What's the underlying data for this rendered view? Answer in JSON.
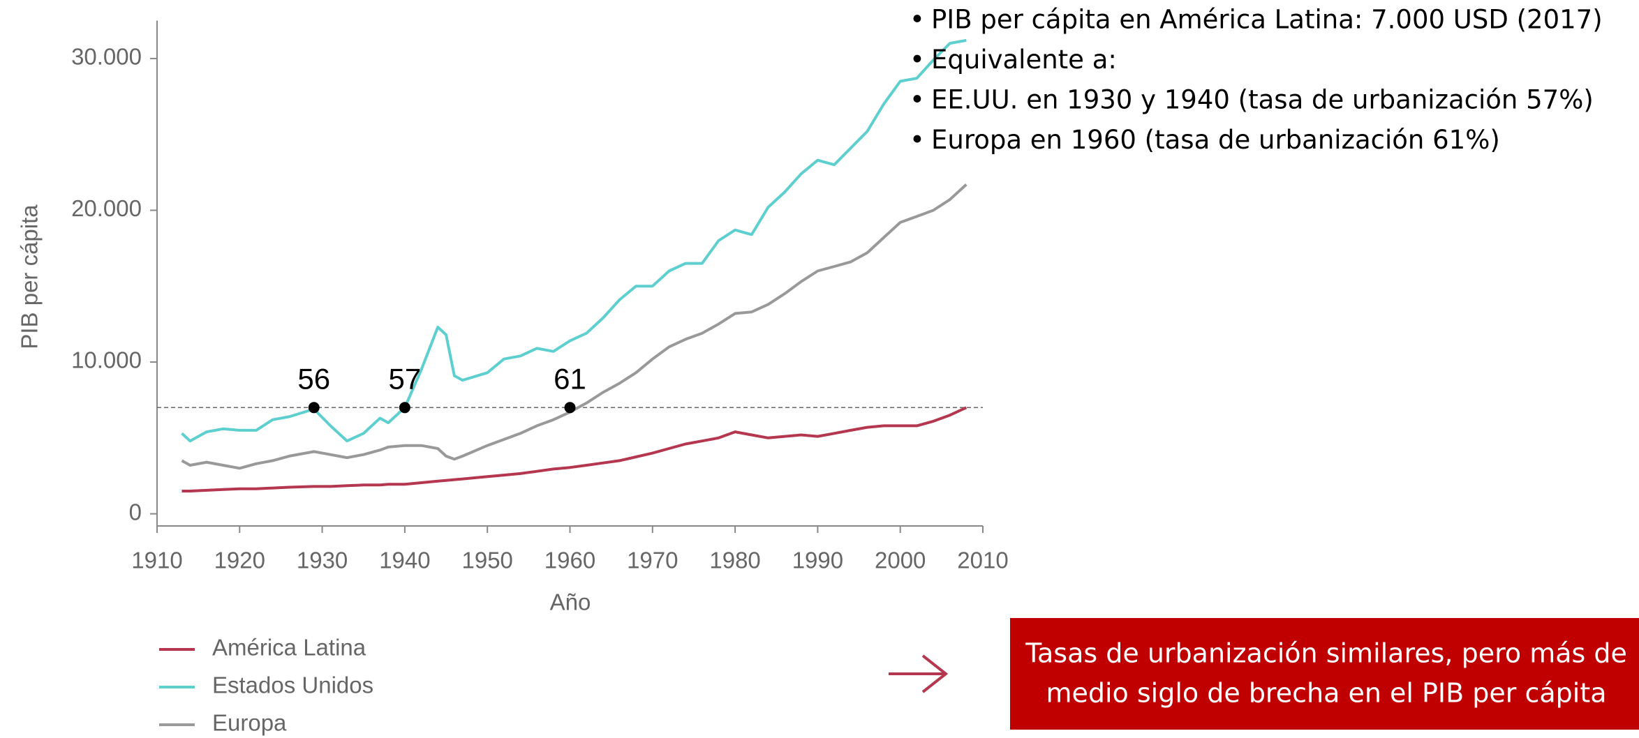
{
  "chart_data": {
    "type": "line",
    "y_label": "PIB per cápita",
    "x_label": "Año",
    "x": [
      1913,
      1914,
      1916,
      1918,
      1920,
      1922,
      1924,
      1926,
      1929,
      1931,
      1933,
      1935,
      1937,
      1938,
      1940,
      1942,
      1944,
      1945,
      1946,
      1947,
      1950,
      1952,
      1954,
      1956,
      1958,
      1960,
      1962,
      1964,
      1966,
      1968,
      1970,
      1972,
      1974,
      1976,
      1978,
      1980,
      1982,
      1984,
      1986,
      1988,
      1990,
      1992,
      1994,
      1996,
      1998,
      2000,
      2002,
      2004,
      2006,
      2008
    ],
    "series": [
      {
        "name": "América Latina",
        "color": "#b5364f",
        "values": [
          1500,
          1500,
          1550,
          1600,
          1650,
          1650,
          1700,
          1750,
          1800,
          1800,
          1850,
          1900,
          1900,
          1950,
          1950,
          2050,
          2150,
          2200,
          2250,
          2300,
          2450,
          2550,
          2650,
          2800,
          2950,
          3050,
          3200,
          3350,
          3500,
          3750,
          4000,
          4300,
          4600,
          4800,
          5000,
          5400,
          5200,
          5000,
          5100,
          5200,
          5100,
          5300,
          5500,
          5700,
          5800,
          5800,
          5800,
          6100,
          6500,
          7000
        ]
      },
      {
        "name": "Estados Unidos",
        "color": "#5ecfcf",
        "values": [
          5300,
          4800,
          5400,
          5600,
          5500,
          5500,
          6200,
          6400,
          6900,
          5800,
          4800,
          5300,
          6300,
          6000,
          7000,
          9500,
          12300,
          11800,
          9100,
          8800,
          9300,
          10200,
          10400,
          10900,
          10700,
          11400,
          11900,
          12900,
          14100,
          15000,
          15000,
          16000,
          16500,
          16500,
          18000,
          18700,
          18400,
          20200,
          21200,
          22400,
          23300,
          23000,
          24100,
          25200,
          27000,
          28500,
          28700,
          29900,
          31000,
          31200
        ]
      },
      {
        "name": "Europa",
        "color": "#999999",
        "values": [
          3500,
          3200,
          3400,
          3200,
          3000,
          3300,
          3500,
          3800,
          4100,
          3900,
          3700,
          3900,
          4200,
          4400,
          4500,
          4500,
          4300,
          3800,
          3600,
          3800,
          4500,
          4900,
          5300,
          5800,
          6200,
          6700,
          7300,
          8000,
          8600,
          9300,
          10200,
          11000,
          11500,
          11900,
          12500,
          13200,
          13300,
          13800,
          14500,
          15300,
          16000,
          16300,
          16600,
          17200,
          18200,
          19200,
          19600,
          20000,
          20700,
          21700
        ]
      }
    ],
    "reference_line": 7000,
    "markers": [
      {
        "x": 1929,
        "y": 7000,
        "label": "56"
      },
      {
        "x": 1940,
        "y": 7000,
        "label": "57"
      },
      {
        "x": 1960,
        "y": 7000,
        "label": "61"
      }
    ],
    "xlim": [
      1910,
      2010
    ],
    "xticks": [
      1910,
      1920,
      1930,
      1940,
      1950,
      1960,
      1970,
      1980,
      1990,
      2000,
      2010
    ],
    "ylim": [
      -800,
      32500
    ],
    "yticks": [
      0,
      {
        "value": 10000,
        "label": "10.000"
      },
      {
        "value": 20000,
        "label": "20.000"
      },
      {
        "value": 30000,
        "label": "30.000"
      }
    ]
  },
  "notes": [
    "PIB per cápita en América Latina: 7.000 USD (2017)",
    "Equivalente a:",
    "EE.UU. en 1930 y 1940 (tasa de urbanización 57%)",
    "Europa en 1960 (tasa de urbanización 61%)"
  ],
  "callout": {
    "lines": [
      "Tasas de urbanización similares, pero más de",
      "medio siglo  de brecha en el PIB per cápita"
    ]
  }
}
